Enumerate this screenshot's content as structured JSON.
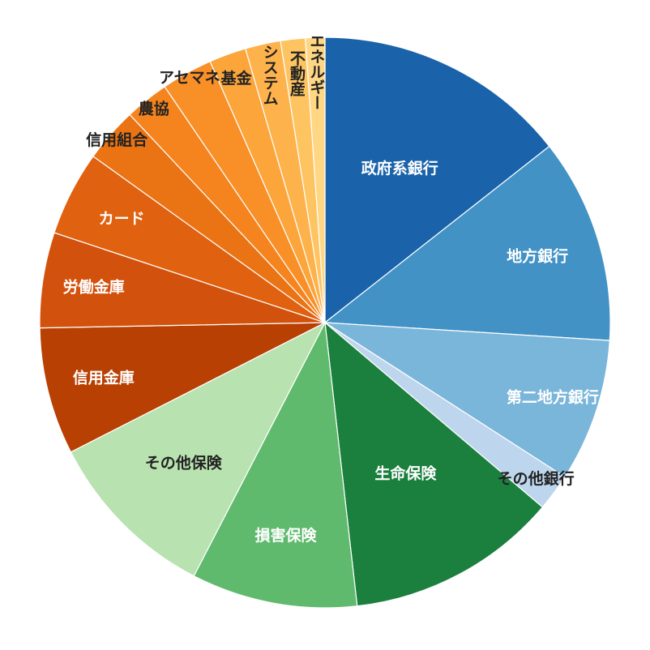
{
  "chart_data": {
    "type": "pie",
    "title": "",
    "categories": [
      "政府系銀行",
      "地方銀行",
      "第二地方銀行",
      "その他銀行",
      "生命保険",
      "損害保険",
      "その他保険",
      "信用金庫",
      "労働金庫",
      "カード",
      "信用組合",
      "農協",
      "アセマネ",
      "基金",
      "システム",
      "不動産",
      "エネルギー"
    ],
    "values": [
      14.4,
      11.6,
      8.1,
      2.1,
      12.0,
      9.4,
      9.9,
      7.2,
      5.4,
      4.8,
      3.1,
      2.5,
      2.9,
      2.1,
      2.0,
      1.4,
      1.1
    ],
    "colors": [
      "#1a63aa",
      "#4292c6",
      "#7ab5da",
      "#bdd6ed",
      "#1b7f3d",
      "#5fba6d",
      "#b8e2b0",
      "#b84002",
      "#d2520d",
      "#e0610f",
      "#ea7314",
      "#f5841f",
      "#f88f27",
      "#fba53b",
      "#fdb24b",
      "#fec461",
      "#ffd684"
    ],
    "label_colors": [
      "#ffffff",
      "#ffffff",
      "#ffffff",
      "#222222",
      "#ffffff",
      "#ffffff",
      "#222222",
      "#ffffff",
      "#ffffff",
      "#ffffff",
      "#222222",
      "#222222",
      "#222222",
      "#222222",
      "#222222",
      "#222222",
      "#222222"
    ],
    "start_angle": "12 o'clock",
    "direction": "clockwise"
  }
}
